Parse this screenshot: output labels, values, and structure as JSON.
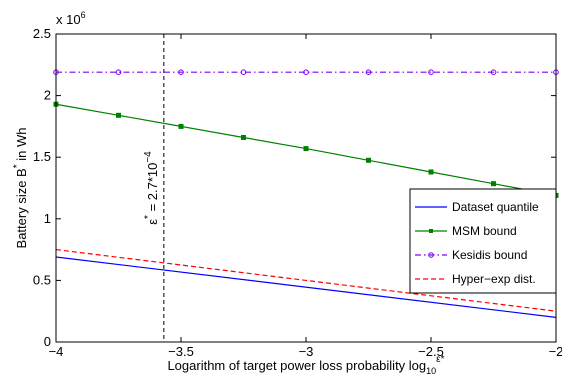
{
  "chart_data": {
    "type": "line",
    "xlabel_main": "Logarithm of target power loss probability log",
    "xlabel_sub": "10",
    "xlabel_sup": "ε*",
    "ylabel_main": "Battery size B",
    "ylabel_sup": "*",
    "ylabel_tail": " in Wh",
    "y_exponent_prefix": "x 10",
    "y_exponent_power": "6",
    "xlim": [
      -4,
      -2
    ],
    "ylim": [
      0,
      2500000
    ],
    "grid": false,
    "legend_position": "right",
    "x_ticks": [
      -4,
      -3.5,
      -3,
      -2.5,
      -2
    ],
    "x_tick_labels": [
      "−4",
      "−3.5",
      "−3",
      "−2.5",
      "−2"
    ],
    "y_ticks": [
      0,
      500000,
      1000000,
      1500000,
      2000000,
      2500000
    ],
    "y_tick_labels": [
      "0",
      "0.5",
      "1",
      "1.5",
      "2",
      "2.5"
    ],
    "series": [
      {
        "name": "Dataset quantile",
        "color": "#0000ff",
        "dash": "solid",
        "marker": "none",
        "x": [
          -4,
          -2
        ],
        "y": [
          690000,
          200000
        ]
      },
      {
        "name": "MSM bound",
        "color": "#008000",
        "dash": "solid",
        "marker": "square",
        "x": [
          -4,
          -3.75,
          -3.5,
          -3.25,
          -3,
          -2.75,
          -2.5,
          -2.25,
          -2
        ],
        "y": [
          1930000,
          1840000,
          1750000,
          1660000,
          1570000,
          1475000,
          1380000,
          1285000,
          1190000
        ]
      },
      {
        "name": "Kesidis bound",
        "color": "#8000ff",
        "dash": "dashdot",
        "marker": "circle",
        "x": [
          -4,
          -3.75,
          -3.5,
          -3.25,
          -3,
          -2.75,
          -2.5,
          -2.25,
          -2
        ],
        "y": [
          2190000,
          2190000,
          2190000,
          2190000,
          2190000,
          2190000,
          2190000,
          2190000,
          2190000
        ]
      },
      {
        "name": "Hyper−exp dist.",
        "color": "#ff0000",
        "dash": "dashed",
        "marker": "none",
        "x": [
          -4,
          -2
        ],
        "y": [
          750000,
          250000
        ]
      }
    ],
    "annotations": [
      {
        "type": "vline",
        "x": -3.5686,
        "color": "#000000",
        "dash": "dashed",
        "label_sym": "ε",
        "label_sup": "*",
        "label_text": " = 2.7*10",
        "label_exp": "−4"
      }
    ]
  }
}
